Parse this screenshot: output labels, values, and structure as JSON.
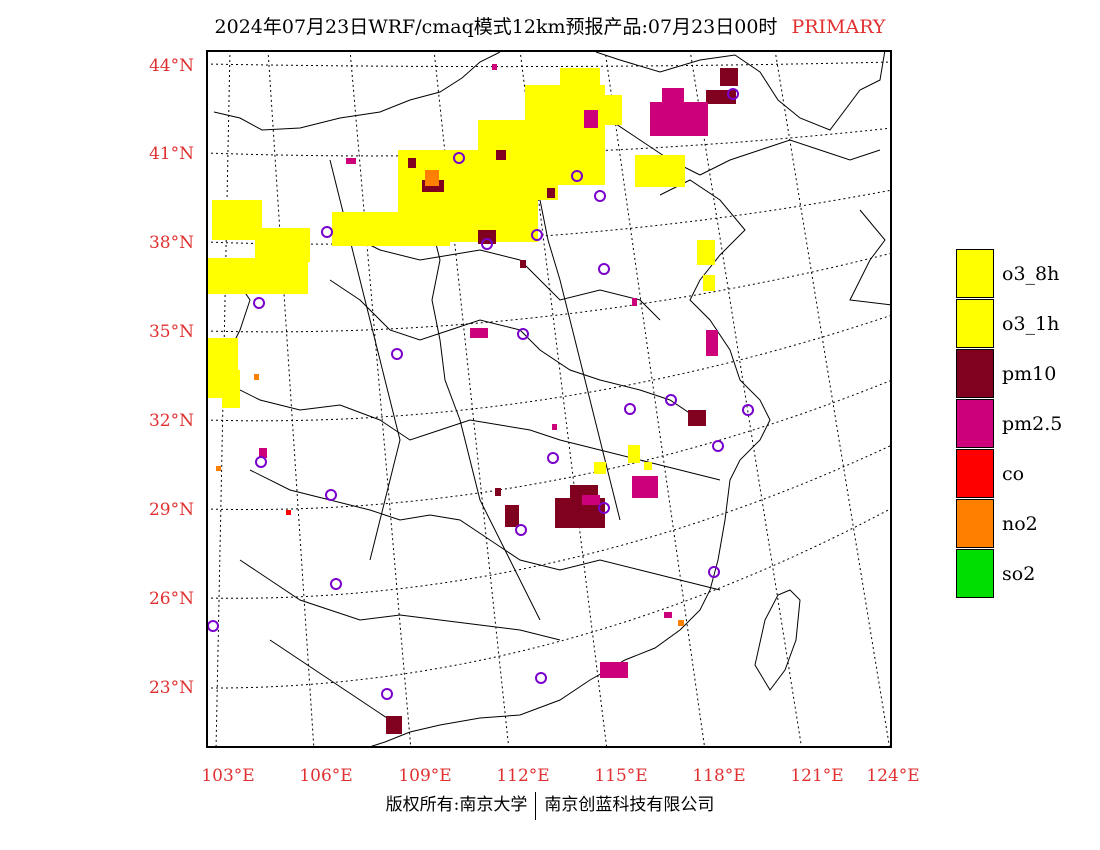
{
  "header": {
    "title": "2024年07月23日WRF/cmaq模式12km预报产品:07月23日00时",
    "tag": "PRIMARY"
  },
  "colors": {
    "o3_8h": "#ffff00",
    "o3_1h": "#ffff00",
    "pm10": "#800020",
    "pm2.5": "#cc007a",
    "co": "#ff0000",
    "no2": "#ff8000",
    "so2": "#00dd00",
    "station": "#7a00cc",
    "grid_label": "#e03030"
  },
  "axes": {
    "lat_labels": [
      "44°N",
      "41°N",
      "38°N",
      "35°N",
      "32°N",
      "29°N",
      "26°N",
      "23°N"
    ],
    "lon_labels": [
      "103°E",
      "106°E",
      "109°E",
      "112°E",
      "115°E",
      "118°E",
      "121°E",
      "124°E"
    ]
  },
  "legend": {
    "items": [
      {
        "key": "o3_8h",
        "label": "o3_8h"
      },
      {
        "key": "o3_1h",
        "label": "o3_1h"
      },
      {
        "key": "pm10",
        "label": "pm10"
      },
      {
        "key": "pm2.5",
        "label": "pm2.5"
      },
      {
        "key": "co",
        "label": "co"
      },
      {
        "key": "no2",
        "label": "no2"
      },
      {
        "key": "so2",
        "label": "so2"
      }
    ]
  },
  "footer": {
    "copyright": "版权所有:南京大学",
    "company": "南京创蓝科技有限公司"
  }
}
